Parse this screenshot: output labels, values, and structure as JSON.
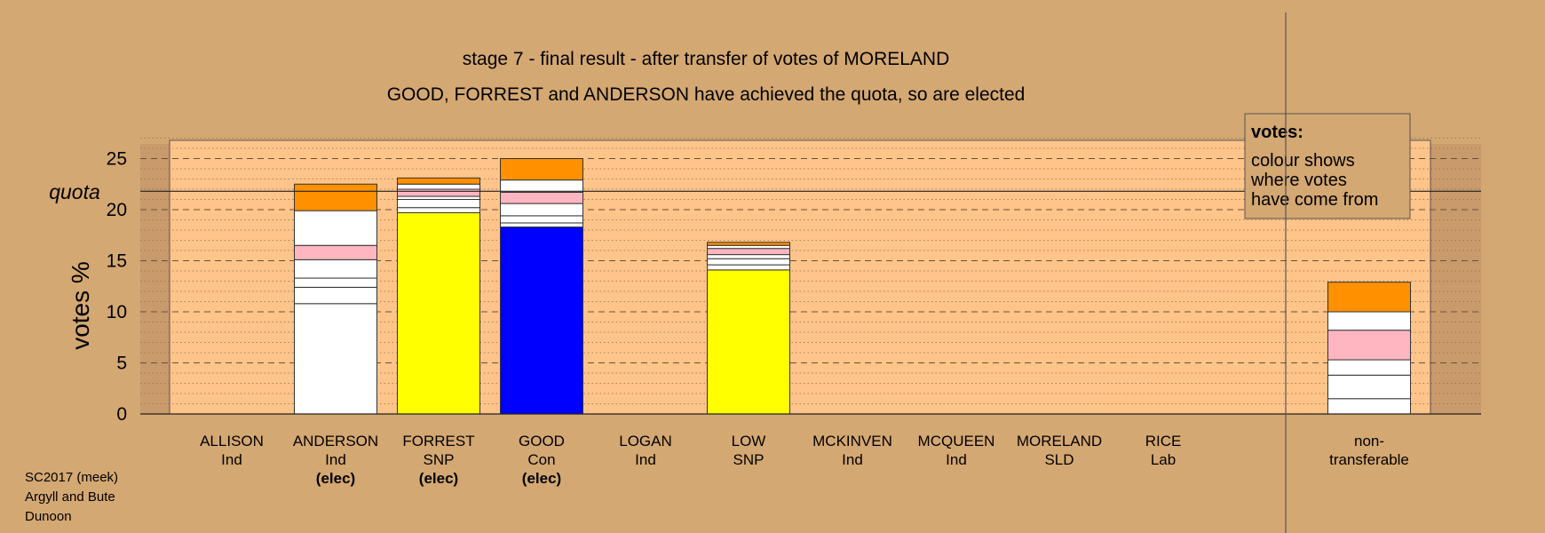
{
  "chart_data": {
    "type": "bar",
    "stacked": true,
    "title": "stage 7 - final result - after transfer of votes of MORELAND",
    "subtitle": "GOOD, FORREST and ANDERSON have achieved the quota, so are elected",
    "ylabel": "votes %",
    "ylim": [
      0,
      27
    ],
    "yticks": [
      "0",
      "5",
      "10",
      "15",
      "20",
      "25"
    ],
    "quota_label": "quota",
    "quota_value": 21.8,
    "grid": "dashed horizontal",
    "legend": {
      "title": "votes:",
      "lines": [
        "colour shows",
        "where votes",
        "have come from"
      ],
      "placement": "top-right"
    },
    "categories": [
      {
        "name": "ALLISON",
        "party": "Ind",
        "status": ""
      },
      {
        "name": "ANDERSON",
        "party": "Ind",
        "status": "(elec)"
      },
      {
        "name": "FORREST",
        "party": "SNP",
        "status": "(elec)"
      },
      {
        "name": "GOOD",
        "party": "Con",
        "status": "(elec)"
      },
      {
        "name": "LOGAN",
        "party": "Ind",
        "status": ""
      },
      {
        "name": "LOW",
        "party": "SNP",
        "status": ""
      },
      {
        "name": "MCKINVEN",
        "party": "Ind",
        "status": ""
      },
      {
        "name": "MCQUEEN",
        "party": "Ind",
        "status": ""
      },
      {
        "name": "MORELAND",
        "party": "SLD",
        "status": ""
      },
      {
        "name": "RICE",
        "party": "Lab",
        "status": ""
      },
      {
        "name": "non-",
        "party": "transferable",
        "status": ""
      }
    ],
    "stacks": [
      [],
      [
        {
          "value": 10.8,
          "color": "#ffffff"
        },
        {
          "value": 1.6,
          "color": "#ffffff"
        },
        {
          "value": 0.9,
          "color": "#ffffff"
        },
        {
          "value": 1.8,
          "color": "#ffffff"
        },
        {
          "value": 1.4,
          "color": "#ffb6c1"
        },
        {
          "value": 3.4,
          "color": "#ffffff"
        },
        {
          "value": 2.6,
          "color": "#ff9000"
        }
      ],
      [
        {
          "value": 19.7,
          "color": "#ffff00"
        },
        {
          "value": 0.5,
          "color": "#ffffff"
        },
        {
          "value": 0.8,
          "color": "#ffffff"
        },
        {
          "value": 0.3,
          "color": "#ffffff"
        },
        {
          "value": 0.7,
          "color": "#ffb6c1"
        },
        {
          "value": 0.5,
          "color": "#ffffff"
        },
        {
          "value": 0.6,
          "color": "#ff9000"
        }
      ],
      [
        {
          "value": 18.3,
          "color": "#0000ff"
        },
        {
          "value": 0.4,
          "color": "#ffffff"
        },
        {
          "value": 0.7,
          "color": "#ffffff"
        },
        {
          "value": 1.2,
          "color": "#ffffff"
        },
        {
          "value": 1.1,
          "color": "#ffb6c1"
        },
        {
          "value": 1.2,
          "color": "#ffffff"
        },
        {
          "value": 2.1,
          "color": "#ff9000"
        }
      ],
      [],
      [
        {
          "value": 14.1,
          "color": "#ffff00"
        },
        {
          "value": 0.5,
          "color": "#ffffff"
        },
        {
          "value": 0.6,
          "color": "#ffffff"
        },
        {
          "value": 0.4,
          "color": "#ffffff"
        },
        {
          "value": 0.6,
          "color": "#ffb6c1"
        },
        {
          "value": 0.3,
          "color": "#ffffff"
        },
        {
          "value": 0.3,
          "color": "#ff9000"
        }
      ],
      [],
      [],
      [],
      [],
      [
        {
          "value": 1.5,
          "color": "#ffffff"
        },
        {
          "value": 2.3,
          "color": "#ffffff"
        },
        {
          "value": 1.5,
          "color": "#ffffff"
        },
        {
          "value": 2.9,
          "color": "#ffb6c1"
        },
        {
          "value": 1.8,
          "color": "#ffffff"
        },
        {
          "value": 2.9,
          "color": "#ff9000"
        }
      ]
    ],
    "colors": {
      "page_bg": "#d4a872",
      "plot_bg": "#ffc48a",
      "plot_edge_bg": "#cc9a6a"
    }
  },
  "footer": {
    "lines": [
      "SC2017 (meek)",
      "Argyll and Bute",
      "Dunoon"
    ]
  }
}
